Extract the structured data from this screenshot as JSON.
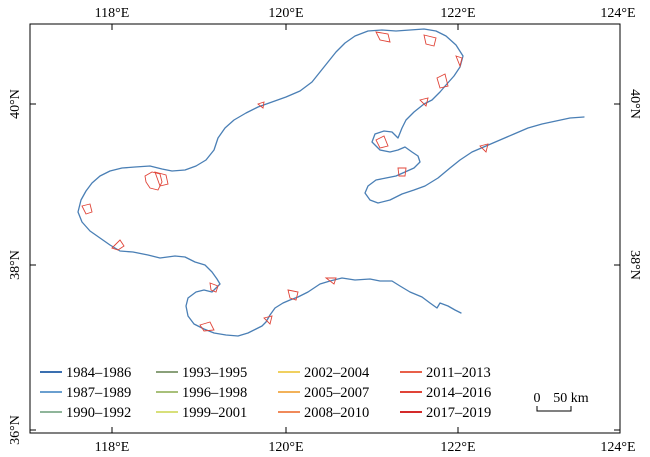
{
  "map": {
    "lon_ticks": [
      "118°E",
      "120°E",
      "122°E",
      "124°E"
    ],
    "lat_ticks": [
      "36°N",
      "38°N",
      "40°N"
    ],
    "legend": [
      {
        "label": "1984–1986",
        "color": "#3a6fb0"
      },
      {
        "label": "1987–1989",
        "color": "#6a9fcf"
      },
      {
        "label": "1990–1992",
        "color": "#8fb59a"
      },
      {
        "label": "1993–1995",
        "color": "#8aa07a"
      },
      {
        "label": "1996–1998",
        "color": "#a8c07a"
      },
      {
        "label": "1999–2001",
        "color": "#d8e07a"
      },
      {
        "label": "2002–2004",
        "color": "#f0d060"
      },
      {
        "label": "2005–2007",
        "color": "#f2b25a"
      },
      {
        "label": "2008–2010",
        "color": "#f08a5a"
      },
      {
        "label": "2011–2013",
        "color": "#e8604a"
      },
      {
        "label": "2014–2016",
        "color": "#e04438"
      },
      {
        "label": "2017–2019",
        "color": "#d42a2a"
      }
    ],
    "scale_bar": {
      "zero": "0",
      "distance": "50 km"
    }
  }
}
